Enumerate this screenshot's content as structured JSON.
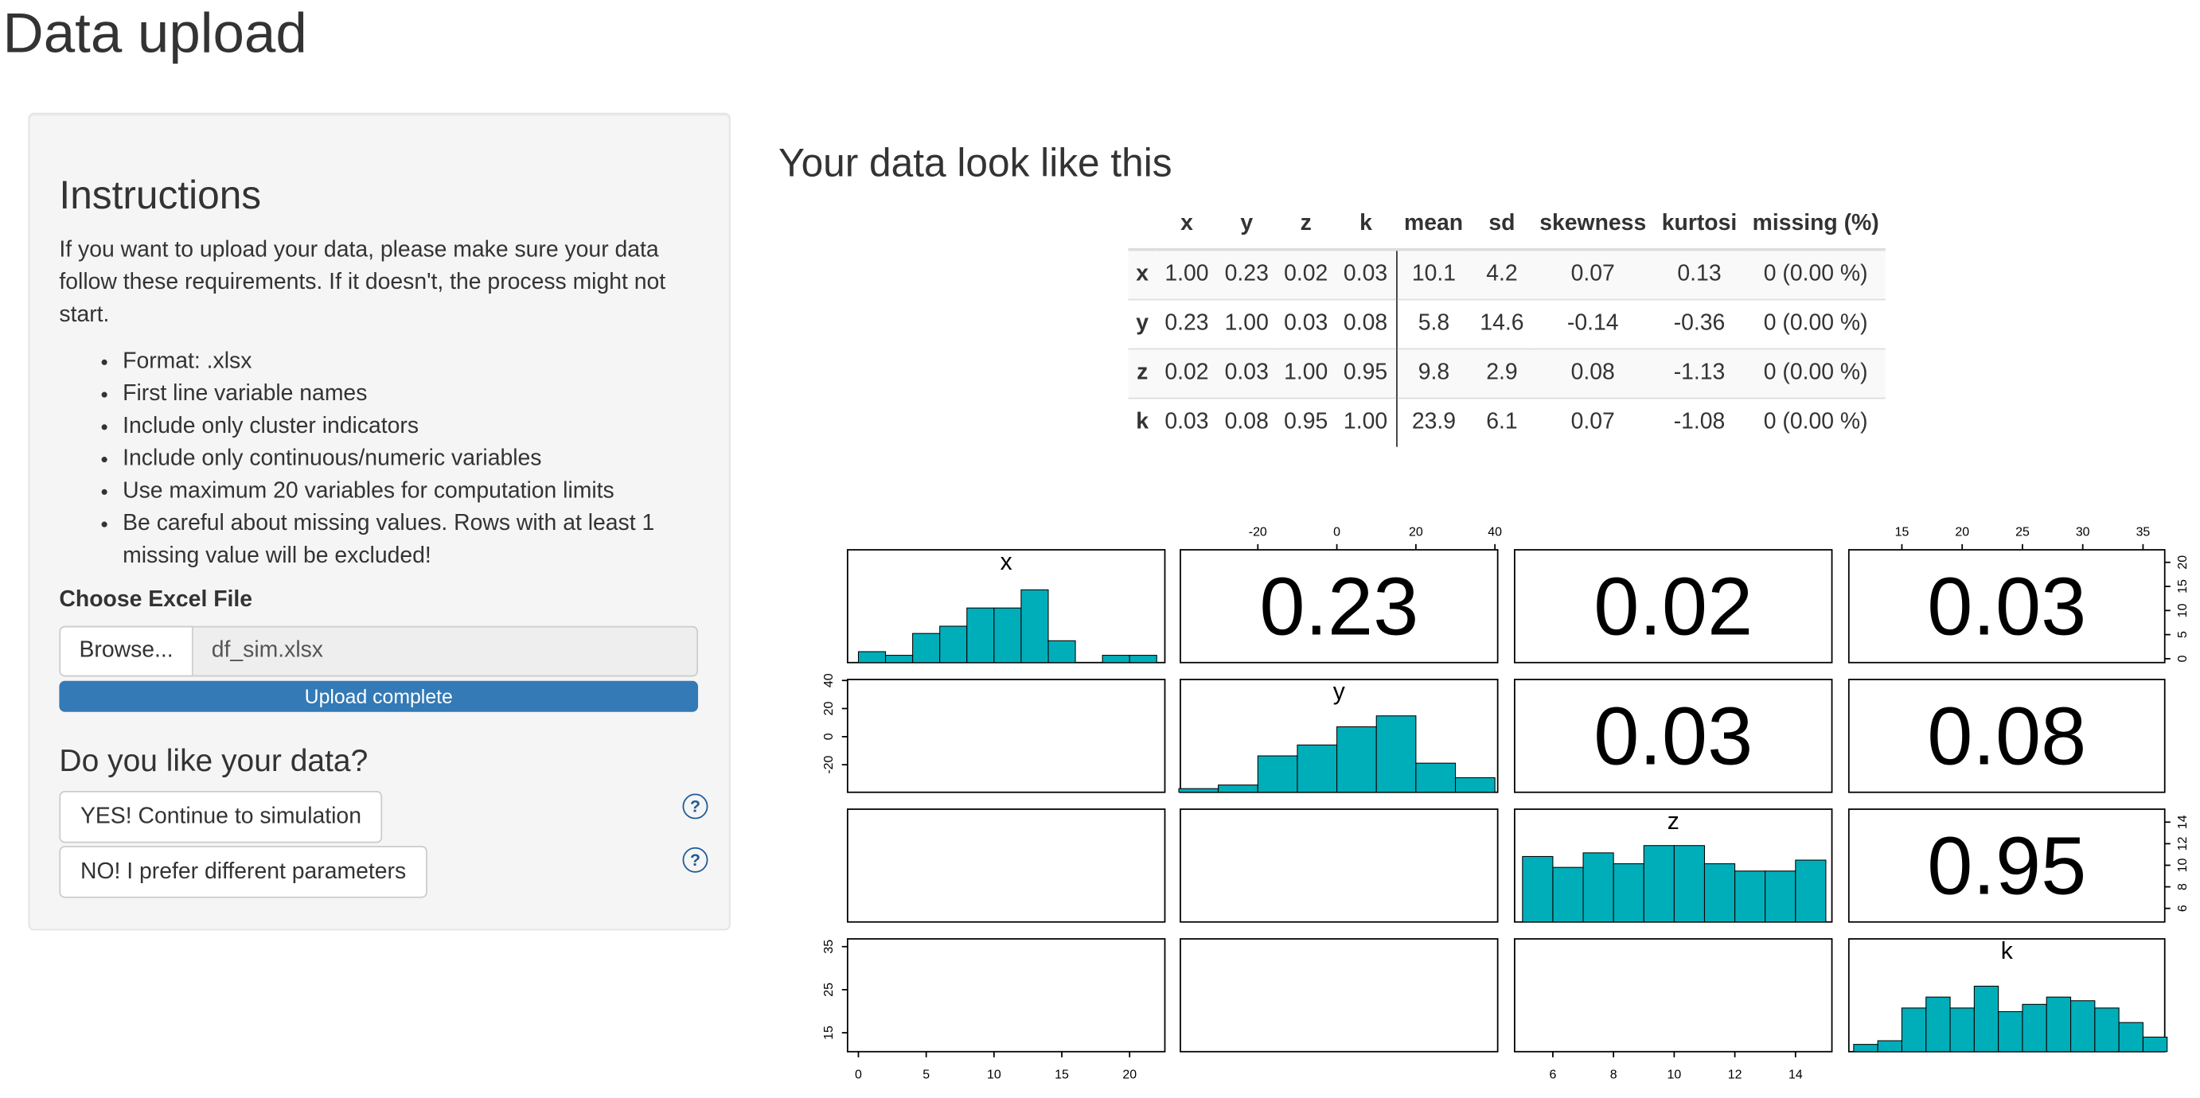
{
  "header": {
    "title": "Data upload"
  },
  "sidebar": {
    "title": "Instructions",
    "intro": "If you want to upload your data, please make sure your data follow these requirements. If it doesn't, the process might not start.",
    "requirements": [
      "Format: .xlsx",
      "First line variable names",
      "Include only cluster indicators",
      "Include only continuous/numeric variables",
      "Use maximum 20 variables for computation limits",
      "Be careful about missing values. Rows with at least 1 missing value will be excluded!"
    ],
    "file_label": "Choose Excel File",
    "browse_button": "Browse...",
    "file_name": "df_sim.xlsx",
    "progress": "Upload complete",
    "question": "Do you like your data?",
    "buttons": [
      "YES! Continue to simulation",
      "NO! I prefer different parameters"
    ],
    "help_icons": [
      "?",
      "?"
    ]
  },
  "main": {
    "title": "Your data look like this",
    "table": {
      "columns": [
        "",
        "x",
        "y",
        "z",
        "k",
        "mean",
        "sd",
        "skewness",
        "kurtosi",
        "missing (%)"
      ],
      "rows": [
        [
          "x",
          "1.00",
          "0.23",
          "0.02",
          "0.03",
          "10.1",
          "4.2",
          "0.07",
          "0.13",
          "0 (0.00 %)"
        ],
        [
          "y",
          "0.23",
          "1.00",
          "0.03",
          "0.08",
          "5.8",
          "14.6",
          "-0.14",
          "-0.36",
          "0 (0.00 %)"
        ],
        [
          "z",
          "0.02",
          "0.03",
          "1.00",
          "0.95",
          "9.8",
          "2.9",
          "0.08",
          "-1.13",
          "0 (0.00 %)"
        ],
        [
          "k",
          "0.03",
          "0.08",
          "0.95",
          "1.00",
          "23.9",
          "6.1",
          "0.07",
          "-1.08",
          "0 (0.00 %)"
        ]
      ]
    },
    "pairs_plot": {
      "variables": [
        "x",
        "y",
        "z",
        "k"
      ],
      "correlations": [
        [
          null,
          "0.23",
          "0.02",
          "0.03"
        ],
        [
          null,
          null,
          "0.03",
          "0.08"
        ],
        [
          null,
          null,
          null,
          "0.95"
        ]
      ],
      "lims": [
        [
          -0.8,
          22.6
        ],
        [
          -39.6,
          40.7
        ],
        [
          4.74,
          15.2
        ],
        [
          10.6,
          36.8
        ]
      ],
      "histograms": [
        {
          "bins": [
            0,
            2,
            4,
            6,
            8,
            10,
            12,
            14,
            16,
            18,
            20,
            22
          ],
          "counts": [
            3,
            2,
            8,
            10,
            15,
            15,
            20,
            6,
            0,
            2,
            2
          ],
          "ylim": [
            0,
            31
          ]
        },
        {
          "bins": [
            -40,
            -30,
            -20,
            -10,
            0,
            10,
            20,
            30,
            40
          ],
          "counts": [
            1,
            2,
            10,
            13,
            18,
            21,
            8,
            4
          ],
          "ylim": [
            0,
            31
          ]
        },
        {
          "bins": [
            5,
            6,
            7,
            8,
            9,
            10,
            11,
            12,
            13,
            14,
            15
          ],
          "counts": [
            18,
            15,
            19,
            16,
            21,
            21,
            16,
            14,
            14,
            17
          ],
          "ylim": [
            0,
            31
          ]
        },
        {
          "bins": [
            11,
            13,
            15,
            17,
            19,
            21,
            23,
            25,
            27,
            29,
            31,
            33,
            35,
            37
          ],
          "counts": [
            2,
            3,
            12,
            15,
            12,
            18,
            11,
            13,
            15,
            14,
            12,
            8,
            4
          ],
          "ylim": [
            0,
            31
          ]
        }
      ],
      "color": "#00aeba",
      "top_axes": [
        {
          "var": 1,
          "ticks": [
            -20,
            0,
            20,
            40
          ]
        },
        {
          "var": 3,
          "ticks": [
            15,
            20,
            25,
            30,
            35
          ]
        }
      ],
      "bottom_axes": [
        {
          "var": 0,
          "ticks": [
            0,
            5,
            10,
            15,
            20
          ]
        },
        {
          "var": 2,
          "ticks": [
            6,
            8,
            10,
            12,
            14
          ]
        }
      ],
      "left_axes": [
        {
          "var": 1,
          "ticks": [
            -20,
            0,
            20,
            40
          ]
        },
        {
          "var": 3,
          "ticks": [
            15,
            25,
            35
          ]
        }
      ],
      "right_axes": [
        {
          "var": 0,
          "ticks": [
            0,
            5,
            10,
            15,
            20
          ]
        },
        {
          "var": 2,
          "ticks": [
            6,
            8,
            10,
            12,
            14
          ]
        }
      ]
    }
  }
}
